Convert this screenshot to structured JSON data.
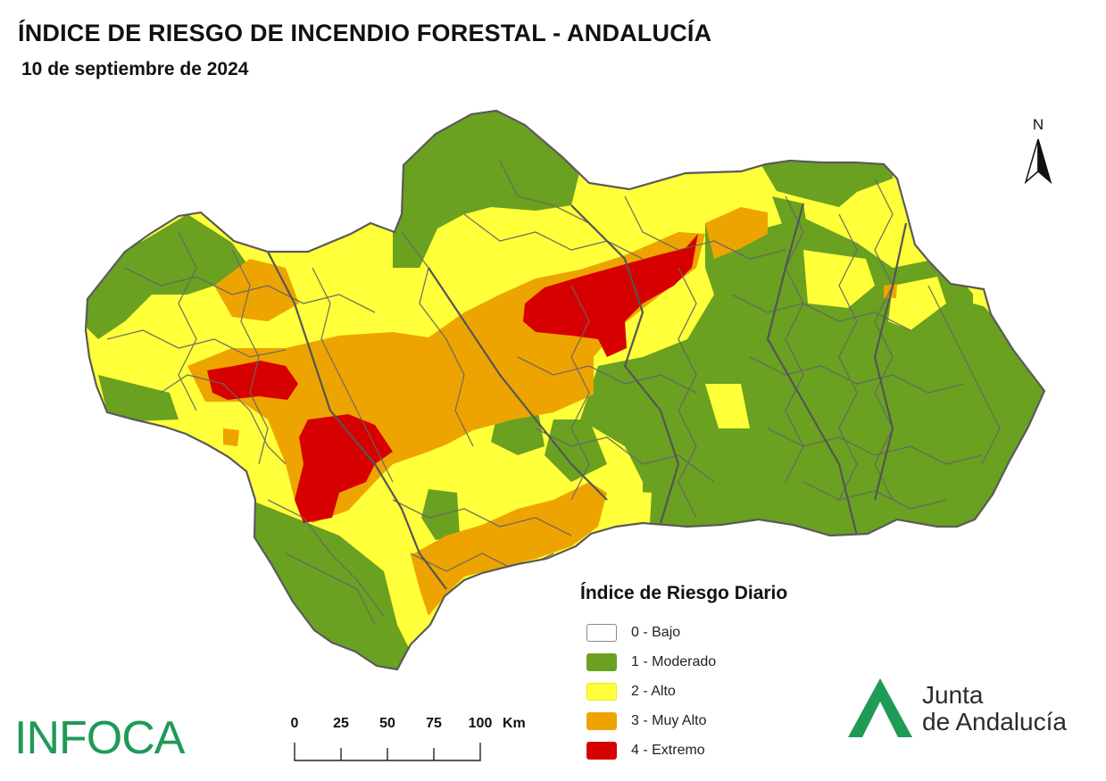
{
  "header": {
    "title": "ÍNDICE DE RIESGO DE INCENDIO FORESTAL - ANDALUCÍA",
    "date": "10 de septiembre de 2024"
  },
  "north_arrow": {
    "label": "N"
  },
  "legend": {
    "title": "Índice de Riesgo Diario",
    "items": [
      {
        "label": "0 - Bajo",
        "color": "#ffffff"
      },
      {
        "label": "1 - Moderado",
        "color": "#6aa120"
      },
      {
        "label": "2 - Alto",
        "color": "#ffff3a"
      },
      {
        "label": "3 - Muy Alto",
        "color": "#eea400"
      },
      {
        "label": "4 - Extremo",
        "color": "#d70000"
      }
    ]
  },
  "scale_bar": {
    "ticks": [
      "0",
      "25",
      "50",
      "75",
      "100"
    ],
    "unit": "Km"
  },
  "logos": {
    "infoca": "INFOCA",
    "junta_line1": "Junta",
    "junta_line2": "de Andalucía"
  },
  "map": {
    "region": "Andalucía",
    "risk_colors": {
      "bajo": "#ffffff",
      "moderado": "#6aa120",
      "alto": "#ffff3a",
      "muy_alto": "#eea400",
      "extremo": "#d70000"
    },
    "border_color": "#666666"
  }
}
